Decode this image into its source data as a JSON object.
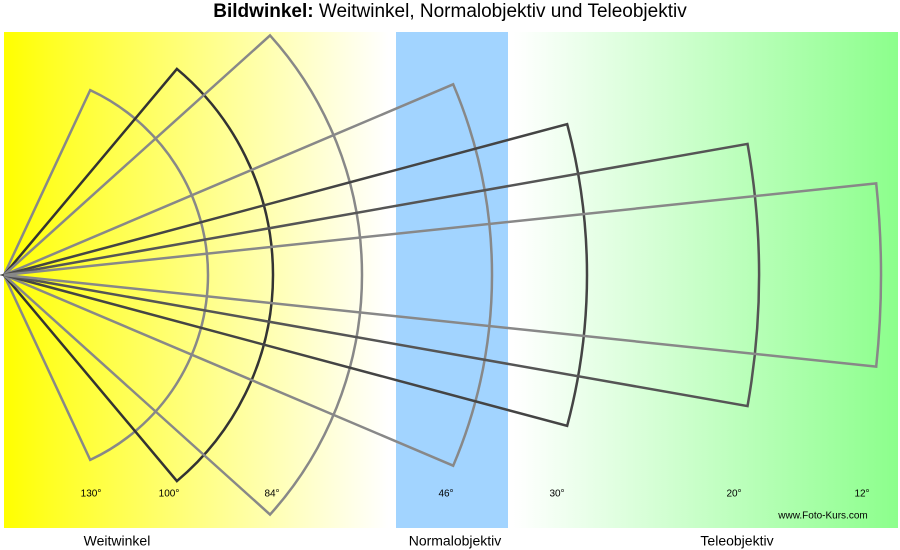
{
  "title": {
    "bold": "Bildwinkel:",
    "rest": "Weitwinkel, Normalobjektiv und Teleobjektiv"
  },
  "angles": [
    {
      "value": 130,
      "label": "130°"
    },
    {
      "value": 100,
      "label": "100°"
    },
    {
      "value": 84,
      "label": "84°"
    },
    {
      "value": 46,
      "label": "46°"
    },
    {
      "value": 30,
      "label": "30°"
    },
    {
      "value": 20,
      "label": "20°"
    },
    {
      "value": 12,
      "label": "12°"
    }
  ],
  "zones": [
    "Weitwinkel",
    "Normalobjektiv",
    "Teleobjektiv"
  ],
  "credit": "www.Foto-Kurs.com"
}
